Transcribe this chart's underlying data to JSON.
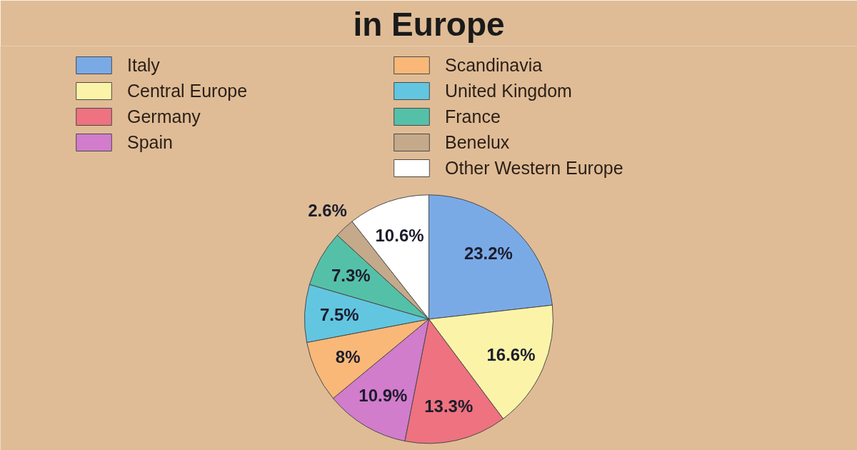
{
  "chart_data": {
    "type": "pie",
    "title": "in Europe",
    "categories": [
      "Italy",
      "Central Europe",
      "Germany",
      "Spain",
      "Scandinavia",
      "United Kingdom",
      "France",
      "Benelux",
      "Other Western Europe"
    ],
    "values": [
      23.2,
      16.6,
      13.3,
      10.9,
      8,
      7.5,
      7.3,
      2.6,
      10.6
    ],
    "colors": [
      "#7aaae6",
      "#fbf4a8",
      "#ee7280",
      "#d27ccc",
      "#f9b877",
      "#62c6e0",
      "#55c0a8",
      "#c4aa8a",
      "#ffffff"
    ],
    "value_labels": [
      "23.2%",
      "16.6%",
      "13.3%",
      "10.9%",
      "8%",
      "7.5%",
      "7.3%",
      "2.6%",
      "10.6%"
    ],
    "legend": "top"
  }
}
